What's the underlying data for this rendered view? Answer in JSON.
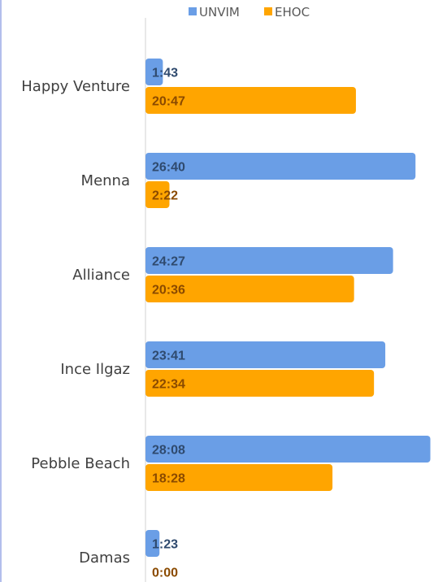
{
  "chart_data": {
    "type": "bar",
    "orientation": "horizontal",
    "categories": [
      "Happy Venture",
      "Menna",
      "Alliance",
      "Ince Ilgaz",
      "Pebble Beach",
      "Damas"
    ],
    "series": [
      {
        "name": "UNVIM",
        "color": "#6a9ee6",
        "label_color": "#2f4a6e",
        "values": [
          103,
          1600,
          1467,
          1421,
          1688,
          83
        ],
        "labels": [
          "1:43",
          "26:40",
          "24:27",
          "23:41",
          "28:08",
          "1:23"
        ]
      },
      {
        "name": "EHOC",
        "color": "#ffa500",
        "label_color": "#8a4a00",
        "values": [
          1247,
          142,
          1236,
          1354,
          1108,
          0
        ],
        "labels": [
          "20:47",
          "2:22",
          "20:36",
          "22:34",
          "18:28",
          "0:00"
        ]
      }
    ],
    "value_unit": "minutes",
    "xlim": [
      0,
      1700
    ],
    "legend_position": "top",
    "grid": false
  }
}
